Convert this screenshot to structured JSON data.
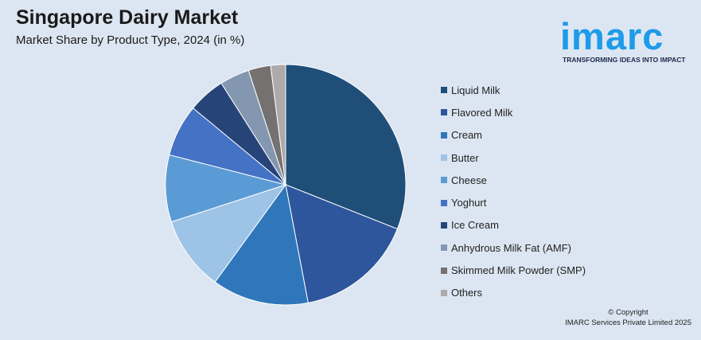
{
  "header": {
    "title": "Singapore Dairy Market",
    "subtitle": "Market Share by Product Type, 2024 (in %)"
  },
  "logo": {
    "word": "imarc",
    "tagline": "TRANSFORMING IDEAS INTO IMPACT",
    "color": "#1e9be9"
  },
  "chart_data": {
    "type": "pie",
    "title": "Singapore Dairy Market",
    "subtitle": "Market Share by Product Type, 2024 (in %)",
    "legend_position": "right",
    "slices": [
      {
        "label": "Liquid Milk",
        "value": 31,
        "color": "#1f4e79"
      },
      {
        "label": "Flavored Milk",
        "value": 16,
        "color": "#2e569c"
      },
      {
        "label": "Cream",
        "value": 13,
        "color": "#2f77ba"
      },
      {
        "label": "Butter",
        "value": 10,
        "color": "#9dc3e6"
      },
      {
        "label": "Cheese",
        "value": 9,
        "color": "#5b9bd5"
      },
      {
        "label": "Yoghurt",
        "value": 7,
        "color": "#4472c4"
      },
      {
        "label": "Ice Cream",
        "value": 5,
        "color": "#264478"
      },
      {
        "label": "Anhydrous Milk Fat (AMF)",
        "value": 4,
        "color": "#8497b0"
      },
      {
        "label": "Skimmed Milk Powder (SMP)",
        "value": 3,
        "color": "#767171"
      },
      {
        "label": "Others",
        "value": 2,
        "color": "#aeaaaa"
      }
    ]
  },
  "footer": {
    "copyright_line1": "© Copyright",
    "copyright_line2": "IMARC Services Private Limited 2025"
  }
}
